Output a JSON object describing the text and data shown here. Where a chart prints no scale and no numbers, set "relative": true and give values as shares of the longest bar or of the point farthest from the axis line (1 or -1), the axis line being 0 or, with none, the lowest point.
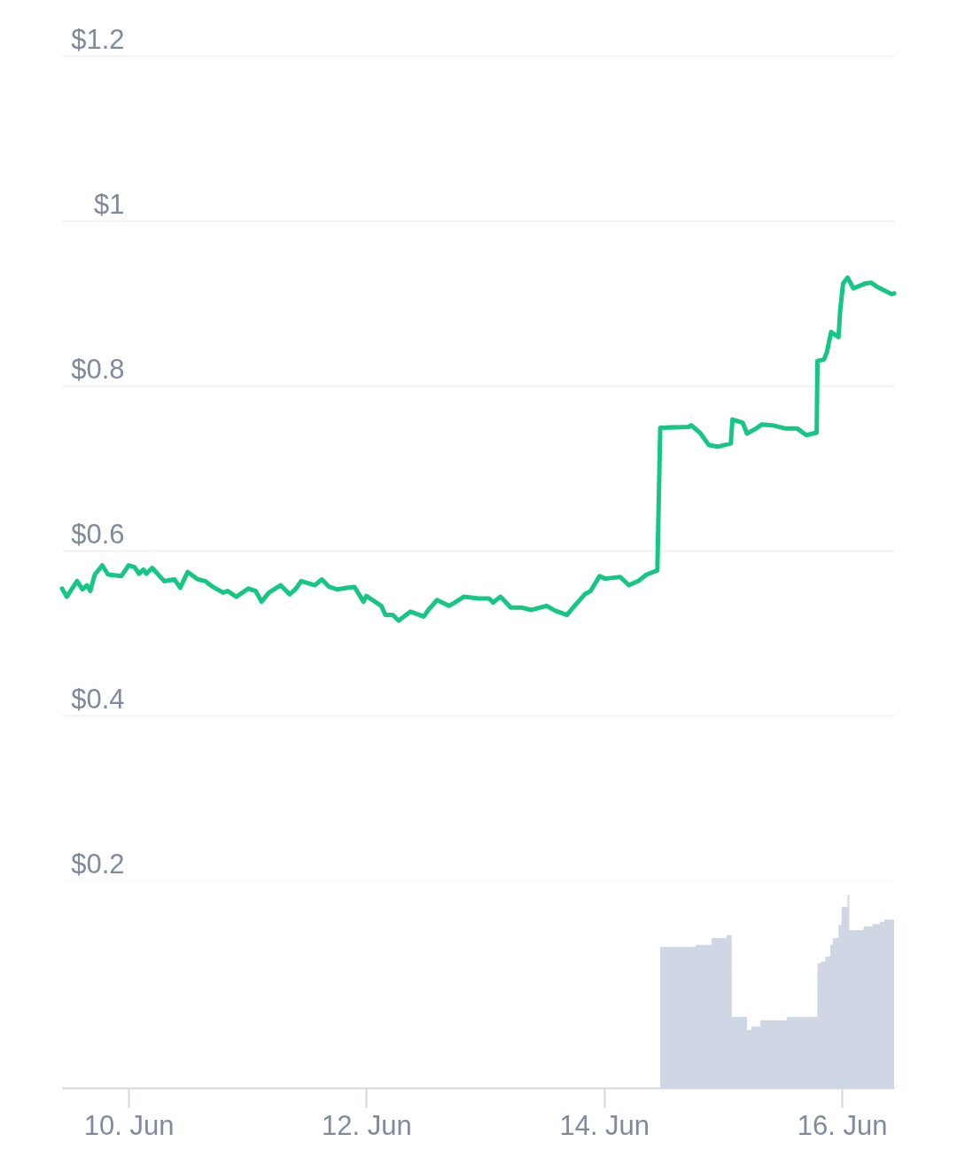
{
  "chart_data": [
    {
      "type": "line",
      "x": [
        "--06-09T10:33",
        "--06-09T11:30",
        "--06-09T13:35",
        "--06-09T14:40",
        "--06-09T15:35",
        "--06-09T16:15",
        "--06-09T17:10",
        "--06-09T18:40",
        "--06-09T19:50",
        "--06-09T22:30",
        "--06-10T00:00",
        "--06-10T01:10",
        "--06-10T02:05",
        "--06-10T03:00",
        "--06-10T03:35",
        "--06-10T04:45",
        "--06-10T07:10",
        "--06-10T09:15",
        "--06-10T10:25",
        "--06-10T11:55",
        "--06-10T14:00",
        "--06-10T15:30",
        "--06-10T17:00",
        "--06-10T19:05",
        "--06-10T20:00",
        "--06-10T21:45",
        "--06-11T00:10",
        "--06-11T01:40",
        "--06-11T02:50",
        "--06-11T04:20",
        "--06-11T06:40",
        "--06-11T08:30",
        "--06-11T09:40",
        "--06-11T10:50",
        "--06-11T13:35",
        "--06-11T15:00",
        "--06-11T16:30",
        "--06-11T18:00",
        "--06-11T20:25",
        "--06-11T21:35",
        "--06-11T23:25",
        "--06-12T00:00",
        "--06-12T03:00",
        "--06-12T03:50",
        "--06-12T05:20",
        "--06-12T06:30",
        "--06-12T08:55",
        "--06-12T11:35",
        "--06-12T12:30",
        "--06-12T14:15",
        "--06-12T16:40",
        "--06-12T17:50",
        "--06-12T19:40",
        "--06-12T22:40",
        "--06-13T00:45",
        "--06-13T01:35",
        "--06-13T03:05",
        "--06-13T05:10",
        "--06-13T07:15",
        "--06-13T09:20",
        "--06-13T12:20",
        "--06-13T14:10",
        "--06-13T16:30",
        "--06-13T17:45",
        "--06-13T20:05",
        "--06-13T21:15",
        "--06-13T23:05",
        "--06-14T00:15",
        "--06-14T03:15",
        "--06-14T05:00",
        "--06-14T06:50",
        "--06-14T08:35",
        "--06-14T10:45",
        "--06-14T11:20",
        "--06-14T17:00",
        "--06-14T17:35",
        "--06-14T19:20",
        "--06-14T21:10",
        "--06-14T22:55",
        "--06-15T01:35",
        "--06-15T01:55",
        "--06-15T04:00",
        "--06-15T04:50",
        "--06-15T06:40",
        "--06-15T07:50",
        "--06-15T10:00",
        "--06-15T12:40",
        "--06-15T15:00",
        "--06-15T16:50",
        "--06-15T18:55",
        "--06-15T19:05",
        "--06-15T20:25",
        "--06-15T21:00",
        "--06-15T21:50",
        "--06-15T23:20",
        "--06-15T23:40",
        "--06-16T00:15",
        "--06-16T01:10",
        "--06-16T02:20",
        "--06-16T04:45",
        "--06-16T05:55",
        "--06-16T07:05",
        "--06-16T10:05",
        "--06-16T10:33"
      ],
      "series": [
        {
          "color": "#16c784",
          "values": [
            0.554,
            0.544,
            0.563,
            0.553,
            0.558,
            0.551,
            0.571,
            0.582,
            0.571,
            0.569,
            0.582,
            0.58,
            0.572,
            0.577,
            0.572,
            0.579,
            0.563,
            0.565,
            0.555,
            0.574,
            0.565,
            0.563,
            0.556,
            0.549,
            0.551,
            0.544,
            0.554,
            0.551,
            0.538,
            0.549,
            0.558,
            0.547,
            0.553,
            0.563,
            0.558,
            0.565,
            0.556,
            0.553,
            0.555,
            0.556,
            0.538,
            0.545,
            0.533,
            0.522,
            0.522,
            0.515,
            0.526,
            0.52,
            0.528,
            0.54,
            0.533,
            0.537,
            0.544,
            0.542,
            0.542,
            0.537,
            0.544,
            0.531,
            0.531,
            0.528,
            0.533,
            0.527,
            0.522,
            0.531,
            0.547,
            0.551,
            0.569,
            0.566,
            0.568,
            0.558,
            0.563,
            0.571,
            0.576,
            0.749,
            0.75,
            0.752,
            0.743,
            0.728,
            0.726,
            0.73,
            0.759,
            0.755,
            0.742,
            0.748,
            0.753,
            0.752,
            0.748,
            0.748,
            0.74,
            0.743,
            0.83,
            0.832,
            0.841,
            0.865,
            0.859,
            0.891,
            0.924,
            0.931,
            0.918,
            0.924,
            0.925,
            0.92,
            0.911,
            0.912
          ]
        }
      ],
      "xlim": [
        "--06-09T10:33",
        "--06-16T10:33"
      ],
      "ylim": [
        0.2,
        1.2
      ],
      "yticks": [
        {
          "value": 0.2,
          "label": "$0.2"
        },
        {
          "value": 0.4,
          "label": "$0.4"
        },
        {
          "value": 0.6,
          "label": "$0.6"
        },
        {
          "value": 0.8,
          "label": "$0.8"
        },
        {
          "value": 1,
          "label": "$1"
        },
        {
          "value": 1.2,
          "label": "$1.2"
        }
      ],
      "grid": "y",
      "tick_labels": "y"
    },
    {
      "type": "area",
      "relative": true,
      "x": [
        "--06-14T11:18",
        "--06-14T18:25",
        "--06-14T18:27",
        "--06-14T21:42",
        "--06-14T21:44",
        "--06-15T00:41",
        "--06-15T00:43",
        "--06-15T01:45",
        "--06-15T01:47",
        "--06-15T04:51",
        "--06-15T04:53",
        "--06-15T05:44",
        "--06-15T05:46",
        "--06-15T07:32",
        "--06-15T07:34",
        "--06-15T12:54",
        "--06-15T12:56",
        "--06-15T19:03",
        "--06-15T19:05",
        "--06-15T19:46",
        "--06-15T19:48",
        "--06-15T20:39",
        "--06-15T20:41",
        "--06-15T21:39",
        "--06-15T21:41",
        "--06-15T22:08",
        "--06-15T22:10",
        "--06-15T23:20",
        "--06-15T23:22",
        "--06-15T23:56",
        "--06-15T23:58",
        "--06-16T01:08",
        "--06-16T01:10",
        "--06-16T01:29",
        "--06-16T01:31",
        "--06-16T04:24",
        "--06-16T04:26",
        "--06-16T06:11",
        "--06-16T06:13",
        "--06-16T07:40",
        "--06-16T07:42",
        "--06-16T08:34",
        "--06-16T08:36",
        "--06-16T10:33"
      ],
      "series": [
        {
          "color": "#cfd6e4",
          "values": [
            0.729,
            0.729,
            0.74,
            0.74,
            0.775,
            0.775,
            0.79,
            0.79,
            0.367,
            0.367,
            0.301,
            0.301,
            0.318,
            0.318,
            0.35,
            0.35,
            0.367,
            0.367,
            0.645,
            0.645,
            0.653,
            0.653,
            0.679,
            0.679,
            0.74,
            0.74,
            0.775,
            0.775,
            0.844,
            0.844,
            0.936,
            0.936,
            1,
            1,
            0.817,
            0.817,
            0.836,
            0.836,
            0.847,
            0.847,
            0.859,
            0.859,
            0.87,
            0.87
          ]
        }
      ],
      "xlim": [
        "--06-09T10:33",
        "--06-16T10:33"
      ],
      "xticks": [
        {
          "value": "--06-10",
          "label": "10. Jun"
        },
        {
          "value": "--06-12",
          "label": "12. Jun"
        },
        {
          "value": "--06-14",
          "label": "14. Jun"
        },
        {
          "value": "--06-16",
          "label": "16. Jun"
        }
      ]
    }
  ]
}
